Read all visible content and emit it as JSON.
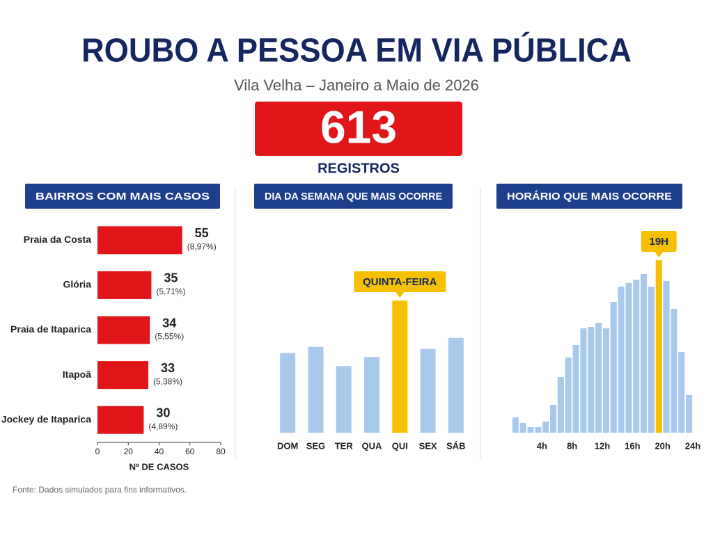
{
  "header": {
    "title": "ROUBO A PESSOA EM VIA PÚBLICA",
    "subtitle": "Vila Velha – Janeiro a Maio de 2026",
    "total": 613,
    "total_label": "REGISTROS"
  },
  "chart_data": [
    {
      "type": "bar",
      "horizontal": true,
      "title": "BAIRROS COM MAIS CASOS",
      "categories": [
        "Praia da Costa",
        "Glória",
        "Praia de Itaparica",
        "Itapoã",
        "Jockey de Itaparica"
      ],
      "values": [
        55,
        35,
        34,
        33,
        30
      ],
      "percent_labels": [
        "(8,97%)",
        "(5,71%)",
        "(5,55%)",
        "(5,38%)",
        "(4,89%)"
      ],
      "color": "#e0161b",
      "xlim": [
        0,
        80
      ],
      "xticks": [
        0,
        20,
        40,
        60,
        80
      ],
      "xlabel": "Nº DE CASOS"
    },
    {
      "type": "column",
      "title": "DIA DA SEMANA QUE MAIS OCORRE",
      "categories": [
        "DOM",
        "SEG",
        "TER",
        "QUA",
        "QUI",
        "SEX",
        "SÁB"
      ],
      "values": [
        79,
        85,
        66,
        75,
        131,
        83,
        94
      ],
      "colors": [
        "#a8c9ec",
        "#a8c9ec",
        "#a8c9ec",
        "#a8c9ec",
        "#f5c000",
        "#a8c9ec",
        "#a8c9ec"
      ],
      "annotation": "QUINTA-FEIRA"
    },
    {
      "type": "histogram",
      "title": "HORÁRIO QUE MAIS OCORRE",
      "x": [
        0,
        1,
        2,
        3,
        4,
        5,
        6,
        7,
        8,
        9,
        10,
        11,
        12,
        13,
        14,
        15,
        16,
        17,
        18,
        19,
        20,
        21,
        22,
        23
      ],
      "values": [
        22,
        14,
        8,
        8,
        16,
        40,
        80,
        108,
        126,
        150,
        152,
        158,
        150,
        188,
        210,
        215,
        220,
        228,
        210,
        248,
        218,
        178,
        116,
        54
      ],
      "colors": [
        "#a8c9ec",
        "#a8c9ec",
        "#a8c9ec",
        "#a8c9ec",
        "#a8c9ec",
        "#a8c9ec",
        "#a8c9ec",
        "#a8c9ec",
        "#a8c9ec",
        "#a8c9ec",
        "#a8c9ec",
        "#a8c9ec",
        "#a8c9ec",
        "#a8c9ec",
        "#a8c9ec",
        "#a8c9ec",
        "#a8c9ec",
        "#a8c9ec",
        "#a8c9ec",
        "#f5c000",
        "#a8c9ec",
        "#a8c9ec",
        "#a8c9ec",
        "#a8c9ec"
      ],
      "xlim": [
        0,
        24
      ],
      "xticks": [
        {
          "value": 4,
          "label": "4h"
        },
        {
          "value": 8,
          "label": "8h"
        },
        {
          "value": 12,
          "label": "12h"
        },
        {
          "value": 16,
          "label": "16h"
        },
        {
          "value": 20,
          "label": "20h"
        },
        {
          "value": 24,
          "label": "24h"
        }
      ],
      "annotation": "19H"
    }
  ],
  "footer": {
    "source": "Fonte: Dados simulados para fins informativos."
  }
}
